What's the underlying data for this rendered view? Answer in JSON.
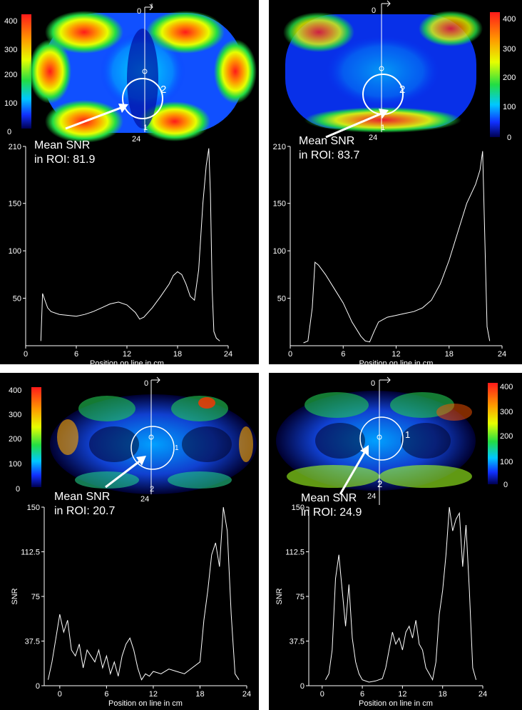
{
  "chart_data": [
    {
      "type": "line",
      "panel": "top-left",
      "colorbar_ticks": [
        "400",
        "300",
        "200",
        "100",
        "0"
      ],
      "profile_start_label": "0",
      "profile_end_label": "24",
      "marker_near": "1",
      "roi_marker": "2",
      "annotation": [
        "Mean SNR",
        "in ROI: 81.9"
      ],
      "xlabel": "Position on line in cm",
      "ylabel": "",
      "xticks": [
        "0",
        "6",
        "12",
        "18",
        "24"
      ],
      "yticks": [
        "50",
        "100",
        "150",
        "210"
      ],
      "xlim": [
        0,
        24
      ],
      "ylim": [
        0,
        210
      ],
      "series": [
        {
          "x": [
            1.8,
            2.0,
            2.2,
            2.6,
            3,
            4,
            5,
            6,
            7,
            8,
            9,
            10,
            11,
            12,
            13,
            13.5,
            14,
            15,
            16,
            17,
            17.5,
            18,
            18.5,
            19,
            19.5,
            20,
            20.5,
            21,
            21.4,
            21.7,
            21.9,
            22.1,
            22.3,
            22.6,
            23
          ],
          "y": [
            5,
            55,
            50,
            40,
            36,
            33,
            32,
            31,
            33,
            36,
            40,
            44,
            46,
            43,
            35,
            28,
            30,
            40,
            52,
            65,
            74,
            78,
            75,
            65,
            52,
            48,
            80,
            150,
            190,
            208,
            160,
            60,
            15,
            8,
            5
          ]
        }
      ]
    },
    {
      "type": "line",
      "panel": "top-right",
      "colorbar_ticks": [
        "400",
        "300",
        "200",
        "100",
        "0"
      ],
      "profile_start_label": "0",
      "profile_end_label": "24",
      "marker_near": "1",
      "roi_marker": "2",
      "annotation": [
        "Mean SNR",
        "in ROI: 83.7"
      ],
      "xlabel": "Position on line in cm",
      "ylabel": "",
      "xticks": [
        "0",
        "6",
        "12",
        "18",
        "24"
      ],
      "yticks": [
        "50",
        "100",
        "150",
        "210"
      ],
      "xlim": [
        0,
        24
      ],
      "ylim": [
        0,
        210
      ],
      "series": [
        {
          "x": [
            1.5,
            2.0,
            2.5,
            2.8,
            3.2,
            4,
            5,
            6,
            7,
            8,
            8.5,
            9,
            9.5,
            10,
            11,
            12,
            13,
            14,
            15,
            16,
            17,
            18,
            19,
            20,
            20.5,
            21,
            21.5,
            21.8,
            22,
            22.3,
            22.6
          ],
          "y": [
            3,
            5,
            40,
            88,
            85,
            75,
            60,
            45,
            25,
            10,
            5,
            4,
            15,
            25,
            30,
            32,
            34,
            36,
            40,
            48,
            65,
            90,
            120,
            150,
            160,
            170,
            185,
            205,
            130,
            20,
            5
          ]
        }
      ]
    },
    {
      "type": "line",
      "panel": "bottom-left",
      "colorbar_ticks": [
        "400",
        "300",
        "200",
        "100",
        "0"
      ],
      "profile_start_label": "0",
      "profile_end_label": "24",
      "marker_near": "1",
      "roi_marker": "2",
      "annotation": [
        "Mean SNR",
        "in ROI: 20.7"
      ],
      "xlabel": "Position on line in cm",
      "ylabel": "SNR",
      "xticks": [
        "0",
        "6",
        "12",
        "18",
        "24"
      ],
      "yticks": [
        "0",
        "37.5",
        "75",
        "112.5",
        "150"
      ],
      "xlim": [
        -2,
        24
      ],
      "ylim": [
        0,
        150
      ],
      "series": [
        {
          "x": [
            -1.5,
            -1,
            -0.5,
            0,
            0.5,
            1,
            1.5,
            2,
            2.5,
            3,
            3.5,
            4,
            4.5,
            5,
            5.5,
            6,
            6.5,
            7,
            7.5,
            8,
            8.5,
            9,
            9.5,
            10,
            10.5,
            11,
            11.5,
            12,
            13,
            14,
            15,
            16,
            17,
            18,
            18.5,
            19,
            19.5,
            20,
            20.5,
            21,
            21.5,
            22,
            22.5,
            23
          ],
          "y": [
            5,
            20,
            40,
            60,
            45,
            55,
            30,
            25,
            35,
            15,
            30,
            25,
            20,
            30,
            15,
            25,
            10,
            20,
            8,
            25,
            35,
            40,
            30,
            15,
            5,
            10,
            8,
            12,
            10,
            14,
            12,
            10,
            15,
            20,
            55,
            80,
            110,
            120,
            100,
            150,
            130,
            60,
            10,
            5
          ]
        }
      ]
    },
    {
      "type": "line",
      "panel": "bottom-right",
      "colorbar_ticks": [
        "400",
        "300",
        "200",
        "100",
        "0"
      ],
      "profile_start_label": "0",
      "profile_end_label": "24",
      "marker_near": "1",
      "roi_marker": "2",
      "annotation": [
        "Mean SNR",
        "in ROI: 24.9"
      ],
      "xlabel": "Position on line in cm",
      "ylabel": "SNR",
      "xticks": [
        "0",
        "6",
        "12",
        "18",
        "24"
      ],
      "yticks": [
        "0",
        "37.5",
        "75",
        "112.5",
        "150"
      ],
      "xlim": [
        -2,
        24
      ],
      "ylim": [
        0,
        150
      ],
      "series": [
        {
          "x": [
            0.5,
            1,
            1.5,
            2,
            2.5,
            3,
            3.5,
            4,
            4.5,
            5,
            5.5,
            6,
            7,
            8,
            9,
            9.5,
            10,
            10.5,
            11,
            11.5,
            12,
            12.5,
            13,
            13.5,
            14,
            14.5,
            15,
            15.5,
            16,
            16.5,
            17,
            17.5,
            18,
            18.5,
            19,
            19.5,
            20,
            20.5,
            21,
            21.5,
            22,
            22.5,
            23
          ],
          "y": [
            5,
            10,
            30,
            90,
            110,
            80,
            50,
            85,
            40,
            20,
            10,
            5,
            3,
            4,
            6,
            15,
            30,
            45,
            35,
            40,
            30,
            45,
            50,
            40,
            55,
            35,
            30,
            15,
            10,
            5,
            20,
            60,
            80,
            110,
            150,
            130,
            140,
            145,
            100,
            135,
            80,
            15,
            5
          ]
        }
      ]
    }
  ]
}
